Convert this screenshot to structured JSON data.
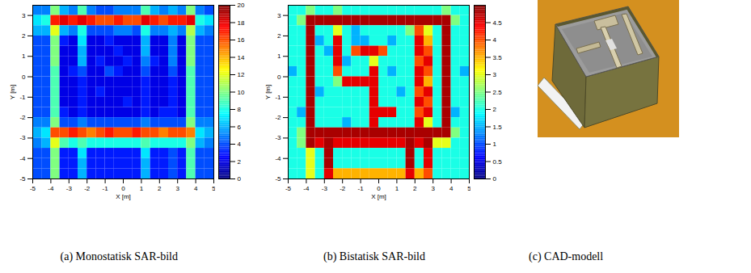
{
  "chart_data": [
    {
      "type": "heatmap",
      "caption": "(a) Monostatisk SAR-bild",
      "x_label": "X [m]",
      "y_label": "Y [m]",
      "xlim": [
        -5,
        5
      ],
      "ylim": [
        -5,
        3.5
      ],
      "xticks": [
        -5,
        -4,
        -3,
        -2,
        -1,
        0,
        1,
        2,
        3,
        4,
        5
      ],
      "yticks": [
        -5,
        -4,
        -3,
        -2,
        -1,
        0,
        1,
        2,
        3
      ],
      "x_edges": [
        -5,
        -4.5,
        -4,
        -3.5,
        -3,
        -2.5,
        -2,
        -1.5,
        -1,
        -0.5,
        0,
        0.5,
        1,
        1.5,
        2,
        2.5,
        3,
        3.5,
        4,
        4.5,
        5
      ],
      "y_edges": [
        3.5,
        3,
        2.5,
        2,
        1.5,
        1,
        0.5,
        0,
        -0.5,
        -1,
        -1.5,
        -2,
        -2.5,
        -3,
        -3.5,
        -4,
        -4.5,
        -5
      ],
      "cells": [
        [
          5,
          5,
          10,
          6,
          5,
          9,
          5,
          4,
          4,
          5,
          5,
          5,
          9,
          6,
          5,
          6,
          5,
          10,
          5,
          4
        ],
        [
          7,
          8,
          17,
          18,
          17,
          18,
          17,
          16,
          16,
          17,
          16,
          16,
          18,
          17,
          16,
          17,
          17,
          18,
          8,
          7
        ],
        [
          6,
          6,
          12,
          6,
          5,
          8,
          4,
          4,
          4,
          5,
          5,
          4,
          8,
          5,
          5,
          6,
          5,
          11,
          6,
          5
        ],
        [
          4,
          4,
          10,
          3,
          2,
          7,
          2,
          2,
          3,
          2,
          2,
          2,
          6,
          2,
          2,
          5,
          2,
          10,
          4,
          4
        ],
        [
          4,
          4,
          10,
          2,
          2,
          6,
          2,
          2,
          2,
          3,
          2,
          2,
          6,
          2,
          2,
          5,
          2,
          10,
          4,
          4
        ],
        [
          4,
          4,
          10,
          2,
          2,
          6,
          2,
          3,
          2,
          2,
          3,
          2,
          5,
          3,
          2,
          5,
          2,
          10,
          4,
          4
        ],
        [
          4,
          4,
          9,
          2,
          3,
          4,
          2,
          2,
          4,
          3,
          2,
          2,
          4,
          2,
          2,
          4,
          2,
          9,
          4,
          4
        ],
        [
          4,
          4,
          9,
          2,
          2,
          3,
          2,
          2,
          2,
          2,
          2,
          2,
          3,
          2,
          2,
          3,
          2,
          9,
          4,
          4
        ],
        [
          4,
          4,
          9,
          2,
          2,
          3,
          2,
          3,
          2,
          2,
          2,
          2,
          3,
          2,
          2,
          3,
          2,
          9,
          4,
          4
        ],
        [
          4,
          4,
          9,
          2,
          2,
          3,
          2,
          2,
          2,
          2,
          3,
          2,
          3,
          2,
          2,
          3,
          2,
          9,
          4,
          4
        ],
        [
          4,
          4,
          9,
          3,
          2,
          3,
          2,
          2,
          2,
          2,
          2,
          2,
          3,
          2,
          3,
          3,
          2,
          9,
          4,
          4
        ],
        [
          5,
          5,
          10,
          4,
          4,
          5,
          4,
          4,
          4,
          4,
          4,
          4,
          5,
          4,
          4,
          4,
          4,
          10,
          5,
          5
        ],
        [
          6,
          7,
          16,
          16,
          17,
          16,
          15,
          16,
          17,
          16,
          16,
          17,
          16,
          16,
          15,
          16,
          16,
          15,
          7,
          6
        ],
        [
          5,
          6,
          12,
          9,
          8,
          9,
          8,
          8,
          8,
          8,
          8,
          8,
          9,
          8,
          8,
          8,
          8,
          10,
          6,
          5
        ],
        [
          4,
          4,
          10,
          3,
          3,
          7,
          3,
          3,
          3,
          3,
          3,
          3,
          7,
          3,
          3,
          4,
          3,
          9,
          4,
          4
        ],
        [
          4,
          4,
          10,
          3,
          3,
          6,
          3,
          3,
          3,
          3,
          3,
          3,
          6,
          3,
          3,
          4,
          3,
          9,
          4,
          4
        ],
        [
          4,
          4,
          10,
          3,
          3,
          6,
          3,
          3,
          3,
          3,
          3,
          3,
          6,
          3,
          3,
          4,
          3,
          9,
          4,
          4
        ]
      ],
      "color_range": [
        0,
        20
      ],
      "color_ticks": [
        0,
        2,
        4,
        6,
        8,
        10,
        12,
        14,
        16,
        18,
        20
      ]
    },
    {
      "type": "heatmap",
      "caption": "(b) Bistatisk SAR-bild",
      "x_label": "X [m]",
      "y_label": "Y [m]",
      "xlim": [
        -5,
        5
      ],
      "ylim": [
        -5,
        3.5
      ],
      "xticks": [
        -5,
        -4,
        -3,
        -2,
        -1,
        0,
        1,
        2,
        3,
        4,
        5
      ],
      "yticks": [
        -5,
        -4,
        -3,
        -2,
        -1,
        0,
        1,
        2,
        3
      ],
      "x_edges": [
        -5,
        -4.5,
        -4,
        -3.5,
        -3,
        -2.5,
        -2,
        -1.5,
        -1,
        -0.5,
        0,
        0.5,
        1,
        1.5,
        2,
        2.5,
        3,
        3.5,
        4,
        4.5,
        5
      ],
      "y_edges": [
        3.5,
        3,
        2.5,
        2,
        1.5,
        1,
        0.5,
        0,
        -0.5,
        -1,
        -1.5,
        -2,
        -2.5,
        -3,
        -3.5,
        -4,
        -4.5,
        -5
      ],
      "cells": [
        [
          2,
          2,
          2.5,
          2,
          2,
          2.5,
          2,
          2,
          2,
          2,
          2,
          2,
          2,
          2,
          2,
          2,
          2,
          2.5,
          2,
          2
        ],
        [
          2,
          2.5,
          4.8,
          4.8,
          4.8,
          4.8,
          4.8,
          4.8,
          4.8,
          4.8,
          4.8,
          4.8,
          4.8,
          4.8,
          4.8,
          4.8,
          4.8,
          4.8,
          2.5,
          2
        ],
        [
          2,
          2,
          4.8,
          2,
          2,
          3,
          2,
          1.5,
          2,
          2,
          2,
          2,
          2,
          2.5,
          4,
          3,
          2,
          4.8,
          2,
          2
        ],
        [
          2,
          2,
          4.8,
          1.5,
          2,
          4.5,
          2,
          1.5,
          1.5,
          2,
          2,
          1.5,
          2,
          2,
          4.5,
          3.5,
          2,
          4.8,
          2,
          2
        ],
        [
          2,
          2,
          4.8,
          2,
          1.5,
          4.5,
          2,
          4,
          4.5,
          4.5,
          4,
          2,
          2,
          2,
          4.5,
          4,
          2,
          4.8,
          2,
          2
        ],
        [
          2,
          2,
          4.8,
          2,
          2,
          4.5,
          1.5,
          2,
          2,
          3,
          2,
          2,
          2,
          2,
          4,
          4.5,
          2,
          4.8,
          2,
          2
        ],
        [
          1.5,
          2,
          4.8,
          2,
          2,
          4,
          2,
          2,
          2,
          4.5,
          2,
          1.5,
          2,
          2,
          4.5,
          4,
          2,
          4.8,
          2,
          1.5
        ],
        [
          2,
          2,
          4.8,
          2,
          2,
          2.5,
          4.5,
          4.5,
          4.5,
          4.5,
          2,
          2,
          2,
          2,
          4.5,
          3.5,
          2,
          4.8,
          2,
          2
        ],
        [
          2,
          2,
          4.8,
          1.5,
          2,
          2,
          2,
          2,
          2,
          4.5,
          2,
          2,
          1.5,
          2,
          4,
          4.5,
          2,
          4.8,
          2,
          2
        ],
        [
          2,
          2,
          4.8,
          2,
          2,
          2,
          2,
          2,
          2,
          4.5,
          2,
          2,
          2,
          2,
          4.5,
          4,
          2,
          4.8,
          2,
          2
        ],
        [
          2,
          1.5,
          4.8,
          2,
          2,
          2,
          2,
          2,
          2,
          4.5,
          4.5,
          4.5,
          2,
          2,
          4,
          4.5,
          2,
          4.8,
          1.5,
          2
        ],
        [
          2,
          2,
          4.8,
          2,
          2,
          2,
          1.5,
          2,
          2,
          4.5,
          2,
          2,
          2,
          2,
          4.5,
          3,
          2,
          4.8,
          2,
          2
        ],
        [
          2,
          2.5,
          4.8,
          4.8,
          4.8,
          4.8,
          4.8,
          4.8,
          4.8,
          4.8,
          4.8,
          4.8,
          4.8,
          4.8,
          4.8,
          4.8,
          4.8,
          4.8,
          2.5,
          2
        ],
        [
          2,
          2.5,
          4.8,
          4.5,
          4.8,
          4.5,
          4.5,
          4.5,
          4.5,
          4.5,
          4.5,
          4.5,
          4.5,
          4.8,
          4.5,
          4.8,
          3,
          3,
          2,
          2
        ],
        [
          2,
          2,
          3,
          2,
          4.8,
          2,
          2,
          2,
          2,
          2,
          2,
          2,
          2,
          4.8,
          2,
          4.5,
          2,
          2,
          2,
          2
        ],
        [
          2,
          2,
          3,
          2,
          4.8,
          2,
          2,
          2,
          2,
          2,
          2,
          2,
          2,
          4.8,
          2,
          4.5,
          2,
          2,
          2,
          2
        ],
        [
          2,
          2,
          3,
          2,
          4.5,
          3.5,
          3.5,
          3.5,
          3.5,
          3.5,
          3.5,
          3.5,
          3.5,
          4.5,
          3.5,
          4,
          2,
          2,
          2,
          2
        ]
      ],
      "color_range": [
        0,
        5
      ],
      "color_ticks": [
        0,
        0.5,
        1,
        1.5,
        2,
        2.5,
        3,
        3.5,
        4,
        4.5
      ]
    }
  ],
  "cad_model": {
    "caption": "(c) CAD-modell"
  }
}
